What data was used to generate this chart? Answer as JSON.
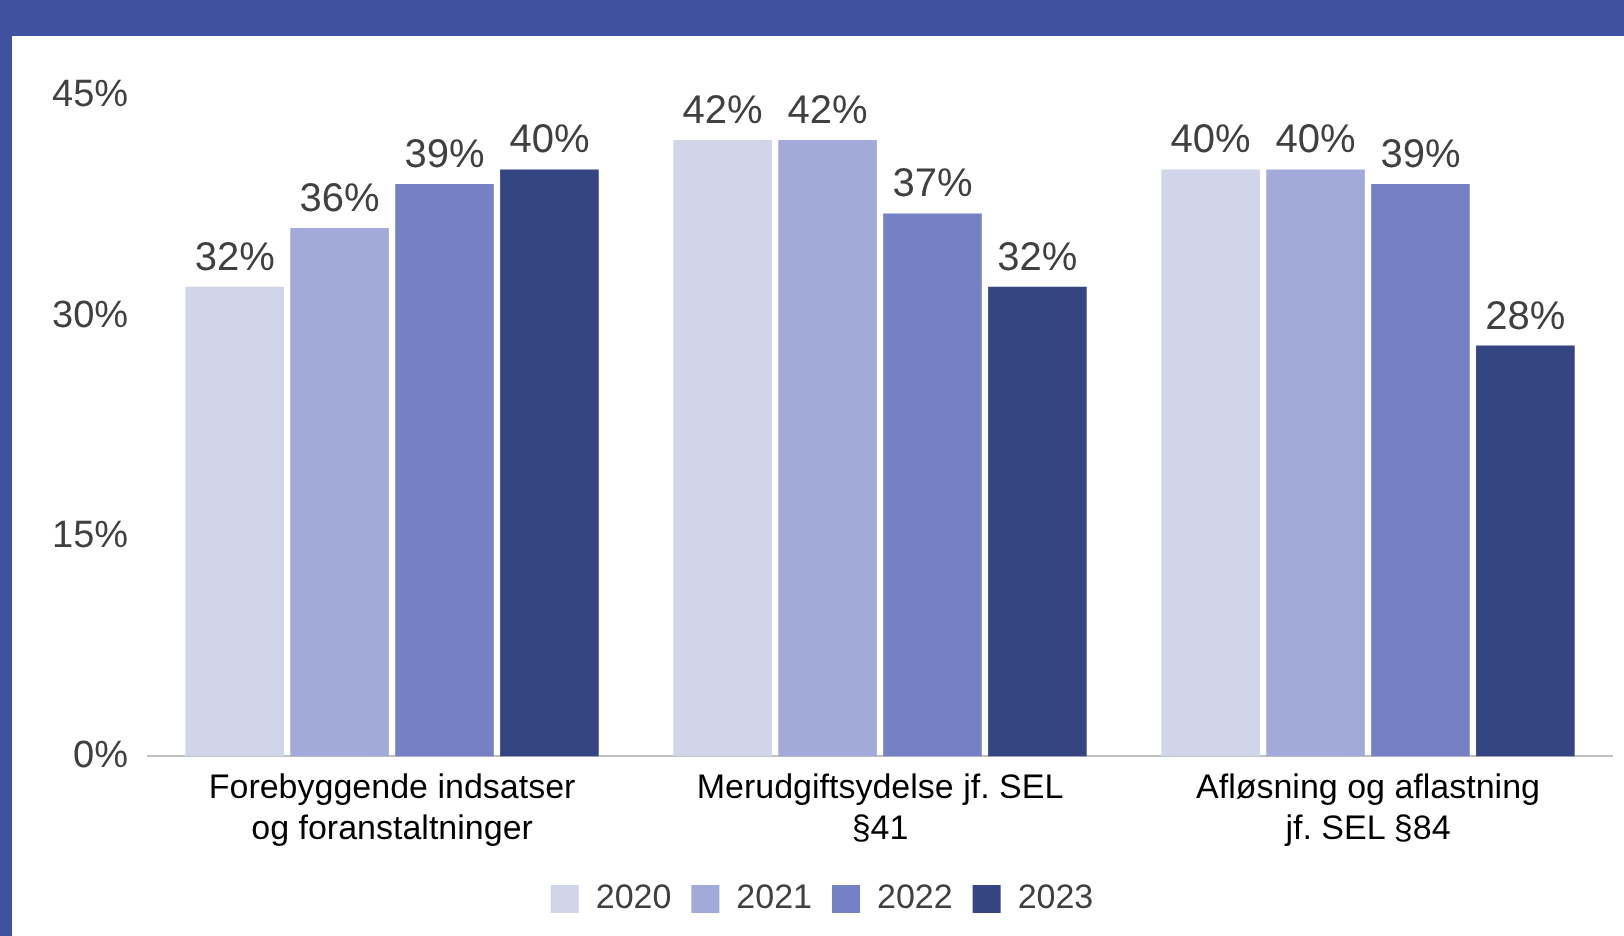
{
  "chart_data": {
    "type": "bar",
    "categories": [
      "Forebyggende indsatser og foranstaltninger",
      "Merudgiftsydelse jf. SEL §41",
      "Afløsning og aflastning jf. SEL §84"
    ],
    "series": [
      {
        "name": "2020",
        "color": "#d0d5ea",
        "values": [
          32,
          42,
          40
        ],
        "value_labels": [
          "32%",
          "42%",
          "40%"
        ]
      },
      {
        "name": "2021",
        "color": "#a2aad9",
        "values": [
          36,
          42,
          40
        ],
        "value_labels": [
          "36%",
          "42%",
          "40%"
        ]
      },
      {
        "name": "2022",
        "color": "#7482c5",
        "values": [
          39,
          37,
          39
        ],
        "value_labels": [
          "39%",
          "37%",
          "39%"
        ]
      },
      {
        "name": "2023",
        "color": "#344581",
        "values": [
          40,
          32,
          28
        ],
        "value_labels": [
          "40%",
          "32%",
          "28%"
        ]
      }
    ],
    "ylim": [
      0,
      45
    ],
    "yticks": [
      {
        "value": 0,
        "label": "0%"
      },
      {
        "value": 15,
        "label": "15%"
      },
      {
        "value": 30,
        "label": "30%"
      },
      {
        "value": 45,
        "label": "45%"
      }
    ],
    "grid": false,
    "legend": "bottom"
  }
}
